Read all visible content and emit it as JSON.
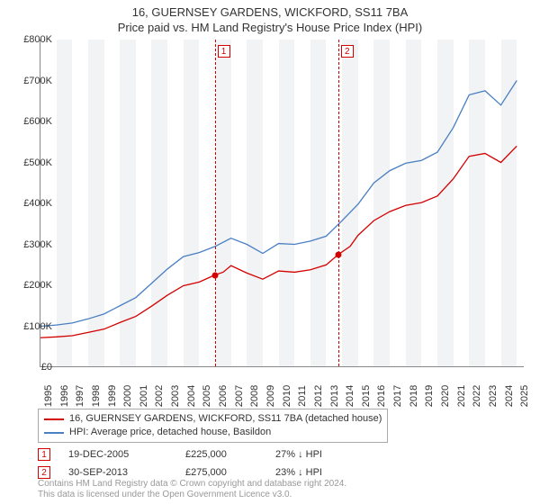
{
  "title": "16, GUERNSEY GARDENS, WICKFORD, SS11 7BA",
  "subtitle": "Price paid vs. HM Land Registry's House Price Index (HPI)",
  "chart": {
    "type": "line",
    "x_min": 1995,
    "x_max": 2025.5,
    "y_min": 0,
    "y_max": 800000,
    "ytick_step": 100000,
    "ytick_labels": [
      "£0",
      "£100K",
      "£200K",
      "£300K",
      "£400K",
      "£500K",
      "£600K",
      "£700K",
      "£800K"
    ],
    "xticks": [
      1995,
      1996,
      1997,
      1998,
      1999,
      2000,
      2001,
      2002,
      2003,
      2004,
      2005,
      2006,
      2007,
      2008,
      2009,
      2010,
      2011,
      2012,
      2013,
      2014,
      2015,
      2016,
      2017,
      2018,
      2019,
      2020,
      2021,
      2022,
      2023,
      2024,
      2025
    ],
    "grid_band_color": "#f2f3f5",
    "background_color": "#ffffff",
    "line_width": 1.3,
    "series": [
      {
        "name": "HPI: Average price, detached house, Basildon",
        "color": "#4a7fc2",
        "points": [
          [
            1995,
            100000
          ],
          [
            1996,
            103000
          ],
          [
            1997,
            108000
          ],
          [
            1998,
            118000
          ],
          [
            1999,
            130000
          ],
          [
            2000,
            150000
          ],
          [
            2001,
            170000
          ],
          [
            2002,
            205000
          ],
          [
            2003,
            240000
          ],
          [
            2004,
            270000
          ],
          [
            2005,
            280000
          ],
          [
            2006,
            295000
          ],
          [
            2007,
            315000
          ],
          [
            2008,
            300000
          ],
          [
            2009,
            278000
          ],
          [
            2010,
            302000
          ],
          [
            2011,
            300000
          ],
          [
            2012,
            308000
          ],
          [
            2013,
            320000
          ],
          [
            2014,
            358000
          ],
          [
            2015,
            398000
          ],
          [
            2016,
            450000
          ],
          [
            2017,
            480000
          ],
          [
            2018,
            498000
          ],
          [
            2019,
            505000
          ],
          [
            2020,
            525000
          ],
          [
            2021,
            585000
          ],
          [
            2022,
            665000
          ],
          [
            2023,
            675000
          ],
          [
            2024,
            640000
          ],
          [
            2025,
            700000
          ]
        ]
      },
      {
        "name": "16, GUERNSEY GARDENS, WICKFORD, SS11 7BA (detached house)",
        "color": "#d40000",
        "points": [
          [
            1995,
            72000
          ],
          [
            1996,
            74000
          ],
          [
            1997,
            77000
          ],
          [
            1998,
            85000
          ],
          [
            1999,
            93000
          ],
          [
            2000,
            109000
          ],
          [
            2001,
            124000
          ],
          [
            2002,
            149000
          ],
          [
            2003,
            176000
          ],
          [
            2004,
            199000
          ],
          [
            2005,
            208000
          ],
          [
            2005.97,
            225000
          ],
          [
            2006.5,
            232000
          ],
          [
            2007,
            248000
          ],
          [
            2008,
            230000
          ],
          [
            2009,
            215000
          ],
          [
            2010,
            235000
          ],
          [
            2011,
            232000
          ],
          [
            2012,
            238000
          ],
          [
            2013,
            250000
          ],
          [
            2013.75,
            275000
          ],
          [
            2014.5,
            295000
          ],
          [
            2015,
            322000
          ],
          [
            2016,
            358000
          ],
          [
            2017,
            380000
          ],
          [
            2018,
            395000
          ],
          [
            2019,
            402000
          ],
          [
            2020,
            418000
          ],
          [
            2021,
            460000
          ],
          [
            2022,
            515000
          ],
          [
            2023,
            522000
          ],
          [
            2024,
            500000
          ],
          [
            2025,
            540000
          ]
        ]
      }
    ],
    "markers": [
      {
        "label": "1",
        "x": 2005.97,
        "y": 225000,
        "color": "#d40000"
      },
      {
        "label": "2",
        "x": 2013.75,
        "y": 275000,
        "color": "#d40000"
      }
    ]
  },
  "legend": {
    "items": [
      {
        "color": "#d40000",
        "label": "16, GUERNSEY GARDENS, WICKFORD, SS11 7BA (detached house)"
      },
      {
        "color": "#4a7fc2",
        "label": "HPI: Average price, detached house, Basildon"
      }
    ]
  },
  "sales": [
    {
      "marker": "1",
      "date": "19-DEC-2005",
      "price": "£225,000",
      "pct": "27% ↓ HPI"
    },
    {
      "marker": "2",
      "date": "30-SEP-2013",
      "price": "£275,000",
      "pct": "23% ↓ HPI"
    }
  ],
  "footer_line1": "Contains HM Land Registry data © Crown copyright and database right 2024.",
  "footer_line2": "This data is licensed under the Open Government Licence v3.0."
}
